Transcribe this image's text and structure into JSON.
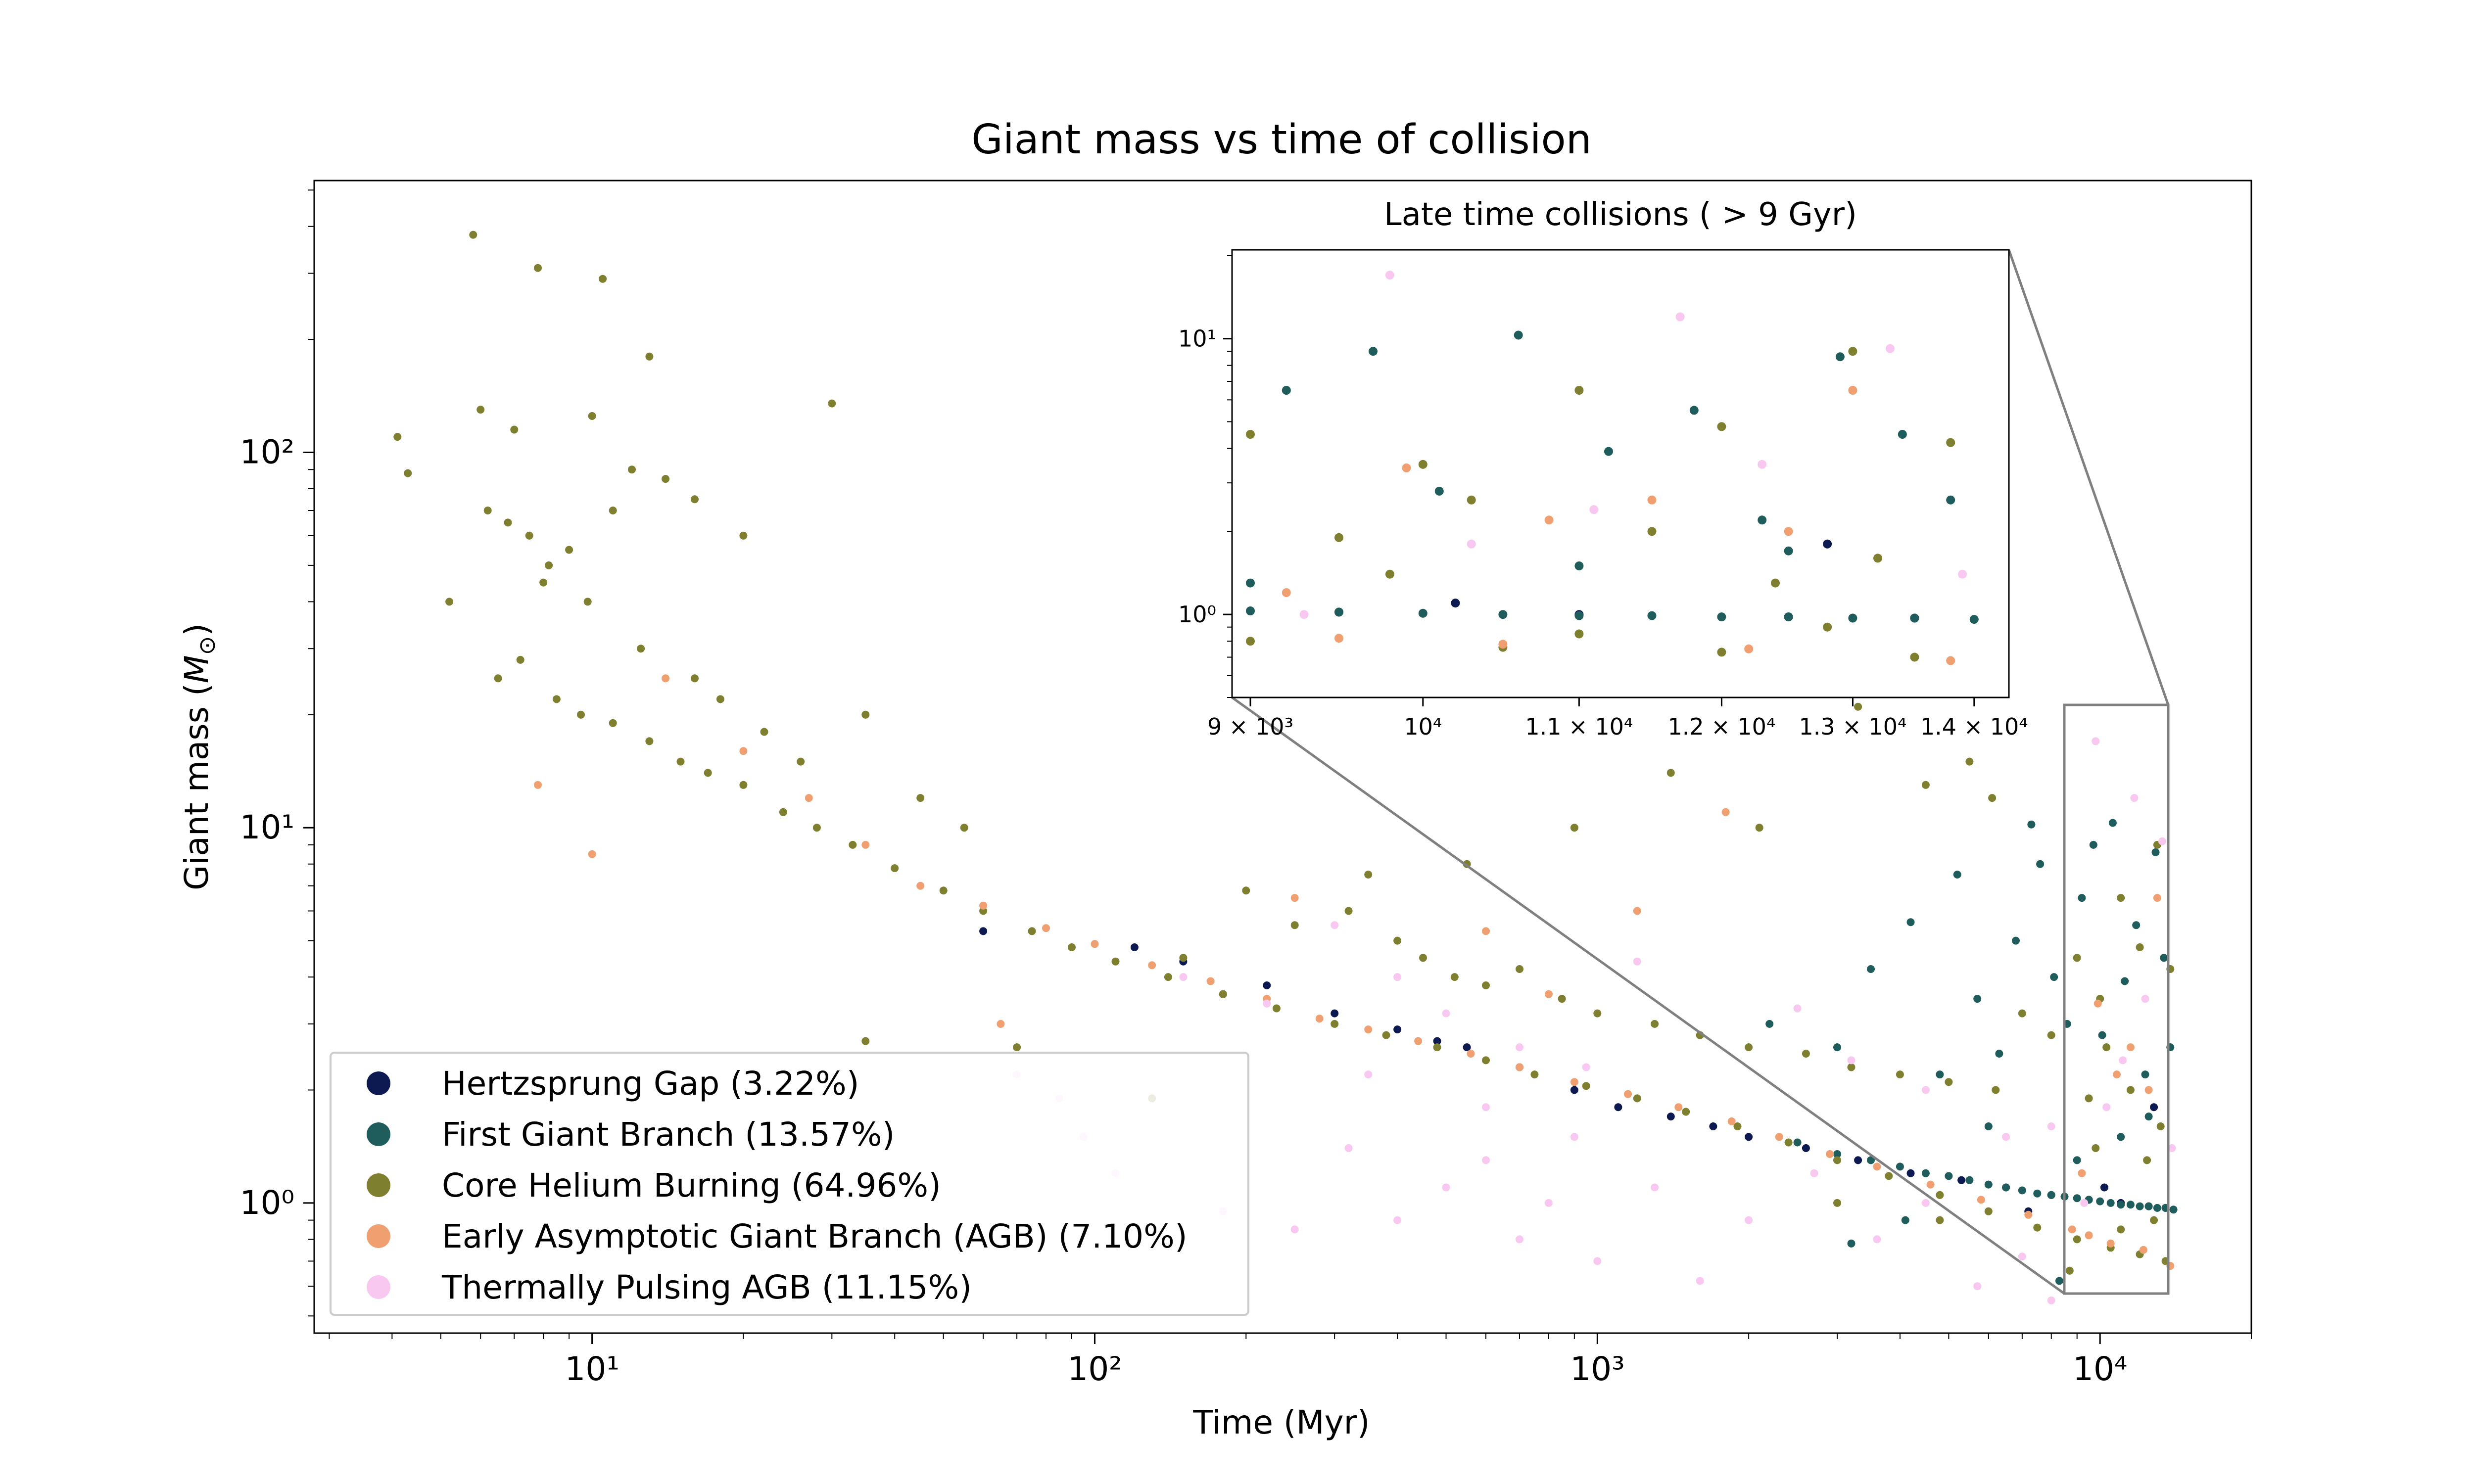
{
  "chart_data": {
    "type": "scatter",
    "title": "Giant mass vs time of collision",
    "xlabel": "Time (Myr)",
    "ylabel": "Giant mass (M⊙)",
    "xscale": "log",
    "yscale": "log",
    "xlim": [
      2.8,
      20000
    ],
    "ylim": [
      0.45,
      530
    ],
    "x_ticks": [
      10,
      100,
      1000,
      10000
    ],
    "x_tick_labels": [
      "10¹",
      "10²",
      "10³",
      "10⁴"
    ],
    "y_ticks": [
      1,
      10,
      100
    ],
    "y_tick_labels": [
      "10⁰",
      "10¹",
      "10²"
    ],
    "grid": false,
    "legend_position": "lower-left",
    "colors": {
      "hertzsprung_gap": "#0d1a52",
      "first_giant_branch": "#1f5c5c",
      "core_helium_burning": "#7f7f30",
      "early_agb": "#f0a070",
      "thermally_pulsing_agb": "#f8c8f0",
      "zoom_frame": "#808080"
    },
    "series": [
      {
        "key": "hg",
        "name": "Hertzsprung Gap (3.22%)",
        "color": "#0d1a52",
        "points": [
          [
            120,
            4.8
          ],
          [
            150,
            4.4
          ],
          [
            220,
            3.8
          ],
          [
            300,
            3.2
          ],
          [
            400,
            2.9
          ],
          [
            550,
            2.6
          ],
          [
            700,
            2.3
          ],
          [
            900,
            2.0
          ],
          [
            1100,
            1.8
          ],
          [
            1400,
            1.7
          ],
          [
            2000,
            1.5
          ],
          [
            2600,
            1.4
          ],
          [
            3300,
            1.3
          ],
          [
            4200,
            1.2
          ],
          [
            5300,
            1.15
          ],
          [
            6500,
            1.1
          ],
          [
            8000,
            1.05
          ],
          [
            9500,
            1.02
          ],
          [
            11000,
            1.0
          ],
          [
            12500,
            0.98
          ],
          [
            13500,
            0.97
          ],
          [
            60,
            5.3
          ],
          [
            180,
            3.6
          ],
          [
            480,
            2.7
          ],
          [
            1700,
            1.6
          ],
          [
            7200,
            0.95
          ],
          [
            10200,
            1.1
          ],
          [
            12800,
            1.8
          ]
        ]
      },
      {
        "key": "fgb",
        "name": "First Giant Branch (13.57%)",
        "color": "#1f5c5c",
        "points": [
          [
            2500,
            1.45
          ],
          [
            3000,
            1.35
          ],
          [
            3500,
            1.3
          ],
          [
            4000,
            1.25
          ],
          [
            4500,
            1.2
          ],
          [
            5000,
            1.18
          ],
          [
            5500,
            1.15
          ],
          [
            6000,
            1.12
          ],
          [
            6500,
            1.1
          ],
          [
            7000,
            1.08
          ],
          [
            7500,
            1.06
          ],
          [
            8000,
            1.05
          ],
          [
            8500,
            1.04
          ],
          [
            9000,
            1.03
          ],
          [
            9500,
            1.02
          ],
          [
            10000,
            1.01
          ],
          [
            10500,
            1.0
          ],
          [
            11000,
            0.99
          ],
          [
            11500,
            0.99
          ],
          [
            12000,
            0.98
          ],
          [
            12500,
            0.98
          ],
          [
            13000,
            0.97
          ],
          [
            13500,
            0.97
          ],
          [
            14000,
            0.96
          ],
          [
            2200,
            3.0
          ],
          [
            3000,
            2.6
          ],
          [
            3500,
            4.2
          ],
          [
            4200,
            5.6
          ],
          [
            4800,
            2.2
          ],
          [
            5200,
            7.5
          ],
          [
            5700,
            3.5
          ],
          [
            6300,
            2.5
          ],
          [
            6800,
            5.0
          ],
          [
            7300,
            10.2
          ],
          [
            7600,
            8.0
          ],
          [
            8100,
            4.0
          ],
          [
            8600,
            3.0
          ],
          [
            9200,
            6.5
          ],
          [
            9700,
            9.0
          ],
          [
            10100,
            2.8
          ],
          [
            10600,
            10.3
          ],
          [
            11200,
            3.9
          ],
          [
            11800,
            5.5
          ],
          [
            12300,
            2.2
          ],
          [
            12900,
            8.6
          ],
          [
            13400,
            4.5
          ],
          [
            13800,
            2.6
          ],
          [
            6000,
            1.6
          ],
          [
            9000,
            1.3
          ],
          [
            11000,
            1.5
          ],
          [
            12500,
            1.7
          ],
          [
            3200,
            0.78
          ],
          [
            4100,
            0.9
          ],
          [
            8300,
            0.62
          ]
        ]
      },
      {
        "key": "chb",
        "name": "Core Helium Burning (64.96%)",
        "color": "#7f7f30",
        "points": [
          [
            5.8,
            380
          ],
          [
            7.8,
            310
          ],
          [
            10.5,
            290
          ],
          [
            13,
            180
          ],
          [
            30,
            135
          ],
          [
            4.1,
            110
          ],
          [
            4.3,
            88
          ],
          [
            6,
            130
          ],
          [
            7,
            115
          ],
          [
            10,
            125
          ],
          [
            12,
            90
          ],
          [
            14,
            85
          ],
          [
            16,
            75
          ],
          [
            20,
            60
          ],
          [
            9,
            55
          ],
          [
            8,
            45
          ],
          [
            11,
            70
          ],
          [
            5.2,
            40
          ],
          [
            6.5,
            25
          ],
          [
            7.2,
            28
          ],
          [
            8.5,
            22
          ],
          [
            9.5,
            20
          ],
          [
            11,
            19
          ],
          [
            13,
            17
          ],
          [
            15,
            15
          ],
          [
            17,
            14
          ],
          [
            20,
            13
          ],
          [
            24,
            11
          ],
          [
            28,
            10
          ],
          [
            33,
            9
          ],
          [
            40,
            7.8
          ],
          [
            50,
            6.8
          ],
          [
            60,
            6.0
          ],
          [
            75,
            5.3
          ],
          [
            90,
            4.8
          ],
          [
            110,
            4.4
          ],
          [
            140,
            4.0
          ],
          [
            180,
            3.6
          ],
          [
            230,
            3.3
          ],
          [
            300,
            3.0
          ],
          [
            380,
            2.8
          ],
          [
            480,
            2.6
          ],
          [
            600,
            2.4
          ],
          [
            750,
            2.2
          ],
          [
            950,
            2.05
          ],
          [
            1200,
            1.9
          ],
          [
            1500,
            1.75
          ],
          [
            1900,
            1.6
          ],
          [
            2400,
            1.45
          ],
          [
            3000,
            1.3
          ],
          [
            3800,
            1.18
          ],
          [
            4800,
            1.05
          ],
          [
            6000,
            0.95
          ],
          [
            7500,
            0.86
          ],
          [
            9000,
            0.8
          ],
          [
            10500,
            0.76
          ],
          [
            12000,
            0.73
          ],
          [
            13500,
            0.7
          ],
          [
            6.2,
            70
          ],
          [
            6.8,
            65
          ],
          [
            7.5,
            60
          ],
          [
            8.2,
            50
          ],
          [
            9.8,
            40
          ],
          [
            12.5,
            30
          ],
          [
            16,
            25
          ],
          [
            18,
            22
          ],
          [
            22,
            18
          ],
          [
            26,
            15
          ],
          [
            35,
            20
          ],
          [
            45,
            12
          ],
          [
            55,
            10
          ],
          [
            250,
            5.5
          ],
          [
            320,
            6.0
          ],
          [
            400,
            5.0
          ],
          [
            450,
            4.5
          ],
          [
            520,
            4.0
          ],
          [
            600,
            3.8
          ],
          [
            700,
            4.2
          ],
          [
            850,
            3.5
          ],
          [
            1000,
            3.2
          ],
          [
            1300,
            3.0
          ],
          [
            1600,
            2.8
          ],
          [
            2000,
            2.6
          ],
          [
            2600,
            2.5
          ],
          [
            3200,
            2.3
          ],
          [
            4000,
            2.2
          ],
          [
            5000,
            2.1
          ],
          [
            6200,
            2.0
          ],
          [
            7000,
            3.2
          ],
          [
            8000,
            2.8
          ],
          [
            9000,
            4.5
          ],
          [
            10000,
            3.5
          ],
          [
            11000,
            6.5
          ],
          [
            12000,
            4.8
          ],
          [
            13000,
            9.0
          ],
          [
            13800,
            4.2
          ],
          [
            3300,
            21
          ],
          [
            4500,
            13
          ],
          [
            5500,
            15
          ],
          [
            6100,
            12
          ],
          [
            2100,
            10
          ],
          [
            1400,
            14
          ],
          [
            900,
            10
          ],
          [
            550,
            8
          ],
          [
            350,
            7.5
          ],
          [
            200,
            6.8
          ],
          [
            150,
            4.5
          ],
          [
            70,
            2.6
          ],
          [
            130,
            1.9
          ],
          [
            35,
            2.7
          ],
          [
            3000,
            1.0
          ],
          [
            4800,
            0.9
          ],
          [
            8700,
            0.66
          ],
          [
            11000,
            0.85
          ],
          [
            12800,
            0.9
          ],
          [
            9500,
            1.9
          ],
          [
            9800,
            1.4
          ],
          [
            10300,
            2.6
          ],
          [
            11500,
            2.0
          ],
          [
            12400,
            1.3
          ],
          [
            13200,
            1.6
          ]
        ]
      },
      {
        "key": "eagb",
        "name": "Early Asymptotic Giant Branch (AGB) (7.10%)",
        "color": "#f0a070",
        "points": [
          [
            7.8,
            13
          ],
          [
            10,
            8.5
          ],
          [
            14,
            25
          ],
          [
            20,
            16
          ],
          [
            27,
            12
          ],
          [
            35,
            9
          ],
          [
            45,
            7
          ],
          [
            60,
            6.2
          ],
          [
            65,
            3.0
          ],
          [
            80,
            5.4
          ],
          [
            100,
            4.9
          ],
          [
            130,
            4.3
          ],
          [
            170,
            3.9
          ],
          [
            220,
            3.5
          ],
          [
            280,
            3.1
          ],
          [
            350,
            2.9
          ],
          [
            440,
            2.7
          ],
          [
            560,
            2.5
          ],
          [
            700,
            2.3
          ],
          [
            900,
            2.1
          ],
          [
            1150,
            1.95
          ],
          [
            1450,
            1.8
          ],
          [
            1800,
            11
          ],
          [
            1850,
            1.65
          ],
          [
            2300,
            1.5
          ],
          [
            2900,
            1.35
          ],
          [
            3600,
            1.25
          ],
          [
            4600,
            1.12
          ],
          [
            5800,
            1.02
          ],
          [
            7200,
            0.93
          ],
          [
            8800,
            0.85
          ],
          [
            9500,
            0.82
          ],
          [
            10500,
            0.78
          ],
          [
            11500,
            2.6
          ],
          [
            12200,
            0.75
          ],
          [
            13000,
            6.5
          ],
          [
            13800,
            0.68
          ],
          [
            600,
            5.3
          ],
          [
            800,
            3.6
          ],
          [
            1200,
            6.0
          ],
          [
            250,
            6.5
          ],
          [
            9200,
            1.2
          ],
          [
            9900,
            3.4
          ],
          [
            10800,
            2.2
          ],
          [
            12500,
            2.0
          ]
        ]
      },
      {
        "key": "tpagb",
        "name": "Thermally Pulsing AGB (11.15%)",
        "color": "#f8c8f0",
        "points": [
          [
            70,
            2.2
          ],
          [
            85,
            1.9
          ],
          [
            95,
            1.5
          ],
          [
            110,
            1.2
          ],
          [
            180,
            0.95
          ],
          [
            250,
            0.85
          ],
          [
            320,
            1.4
          ],
          [
            400,
            0.9
          ],
          [
            500,
            1.1
          ],
          [
            600,
            1.3
          ],
          [
            700,
            0.8
          ],
          [
            800,
            1.0
          ],
          [
            900,
            1.5
          ],
          [
            1000,
            0.7
          ],
          [
            1300,
            1.1
          ],
          [
            1600,
            0.62
          ],
          [
            2000,
            0.9
          ],
          [
            2700,
            1.2
          ],
          [
            3600,
            0.8
          ],
          [
            4500,
            1.0
          ],
          [
            5700,
            0.6
          ],
          [
            7000,
            0.72
          ],
          [
            8000,
            0.55
          ],
          [
            9300,
            1.0
          ],
          [
            9800,
            17
          ],
          [
            10300,
            1.8
          ],
          [
            11100,
            2.4
          ],
          [
            11700,
            12
          ],
          [
            12300,
            3.5
          ],
          [
            13300,
            9.2
          ],
          [
            13900,
            1.4
          ],
          [
            300,
            5.5
          ],
          [
            400,
            4.0
          ],
          [
            500,
            3.2
          ],
          [
            700,
            2.6
          ],
          [
            950,
            2.3
          ],
          [
            1200,
            4.4
          ],
          [
            2500,
            3.3
          ],
          [
            3200,
            2.4
          ],
          [
            4500,
            2.0
          ],
          [
            6500,
            1.5
          ],
          [
            8000,
            1.6
          ],
          [
            150,
            4.0
          ],
          [
            220,
            3.4
          ],
          [
            350,
            2.2
          ],
          [
            600,
            1.8
          ]
        ]
      }
    ],
    "inset": {
      "title": "Late time collisions ( > 9 Gyr)",
      "xlim": [
        8900,
        14300
      ],
      "ylim": [
        0.5,
        21
      ],
      "x_ticks": [
        9000,
        10000,
        11000,
        12000,
        13000,
        14000
      ],
      "x_tick_labels": [
        "9 × 10³",
        "10⁴",
        "1.1 × 10⁴",
        "1.2 × 10⁴",
        "1.3 × 10⁴",
        "1.4 × 10⁴"
      ],
      "y_ticks": [
        1,
        10
      ],
      "y_tick_labels": [
        "10⁰",
        "10¹"
      ]
    }
  }
}
